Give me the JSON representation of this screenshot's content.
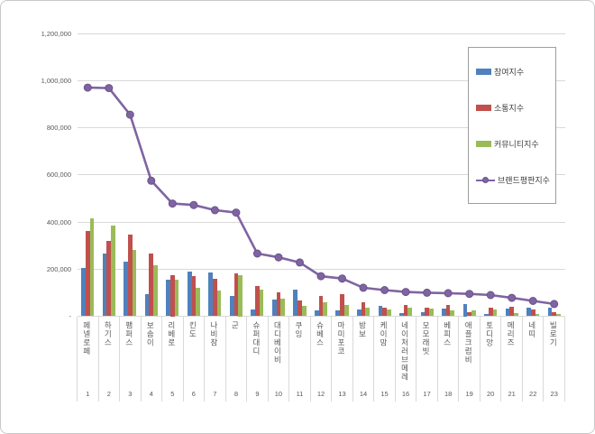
{
  "chart_data": {
    "type": "bar",
    "title": "",
    "xlabel": "",
    "ylabel": "",
    "ylim": [
      0,
      1200000
    ],
    "grid": true,
    "legend_position": "upper right",
    "y_ticks": [
      "-",
      "200,000",
      "400,000",
      "600,000",
      "800,000",
      "1,000,000",
      "1,200,000"
    ],
    "y_tick_values": [
      0,
      200000,
      400000,
      600000,
      800000,
      1000000,
      1200000
    ],
    "categories": [
      "페넬로페",
      "하기스",
      "팸퍼스",
      "보솜이",
      "리베로",
      "킨도",
      "나비잠",
      "군",
      "슈퍼대디",
      "대디베이비",
      "쿠잉",
      "슈베스",
      "마미포코",
      "밤보",
      "케이맘",
      "네이처러브메레",
      "모모래빗",
      "베피스",
      "애플크럼비",
      "토디앙",
      "메리즈",
      "네띠",
      "빌로기"
    ],
    "ranks": [
      "1",
      "2",
      "3",
      "4",
      "5",
      "6",
      "7",
      "8",
      "9",
      "10",
      "11",
      "12",
      "13",
      "14",
      "15",
      "16",
      "17",
      "18",
      "19",
      "20",
      "21",
      "22",
      "23"
    ],
    "bar_series": [
      {
        "name": "참여지수",
        "color": "#4F81BD",
        "values": [
          205000,
          265000,
          230000,
          95000,
          155000,
          190000,
          185000,
          85000,
          28000,
          70000,
          113000,
          24000,
          23000,
          30000,
          45000,
          12000,
          17000,
          33000,
          50000,
          11000,
          33000,
          36000,
          35000
        ]
      },
      {
        "name": "소통지수",
        "color": "#C0504D",
        "values": [
          360000,
          320000,
          345000,
          265000,
          175000,
          170000,
          160000,
          180000,
          130000,
          103000,
          68000,
          85000,
          93000,
          59000,
          38000,
          49000,
          38000,
          48000,
          16000,
          38000,
          42000,
          27000,
          17000
        ]
      },
      {
        "name": "커뮤니티지수",
        "color": "#9BBB59",
        "values": [
          415000,
          385000,
          280000,
          215000,
          155000,
          120000,
          110000,
          175000,
          112000,
          76000,
          45000,
          61000,
          48000,
          36000,
          30000,
          36000,
          33000,
          23000,
          26000,
          30000,
          13000,
          11000,
          8000
        ]
      }
    ],
    "line_series": {
      "name": "브랜드평판지수",
      "color": "#8064A2",
      "marker_edge_color": "#6A528C",
      "values": [
        970000,
        968000,
        855000,
        575000,
        478000,
        472000,
        450000,
        440000,
        266000,
        250000,
        228000,
        170000,
        160000,
        121000,
        111000,
        103000,
        100000,
        98000,
        95000,
        90000,
        78000,
        65000,
        52000
      ]
    }
  },
  "legend": {
    "items": [
      {
        "label": "참여지수",
        "type": "bar",
        "color": "#4F81BD"
      },
      {
        "label": "소통지수",
        "type": "bar",
        "color": "#C0504D"
      },
      {
        "label": "커뮤니티지수",
        "type": "bar",
        "color": "#9BBB59"
      },
      {
        "label": "브랜드평판지수",
        "type": "line",
        "color": "#8064A2"
      }
    ]
  }
}
